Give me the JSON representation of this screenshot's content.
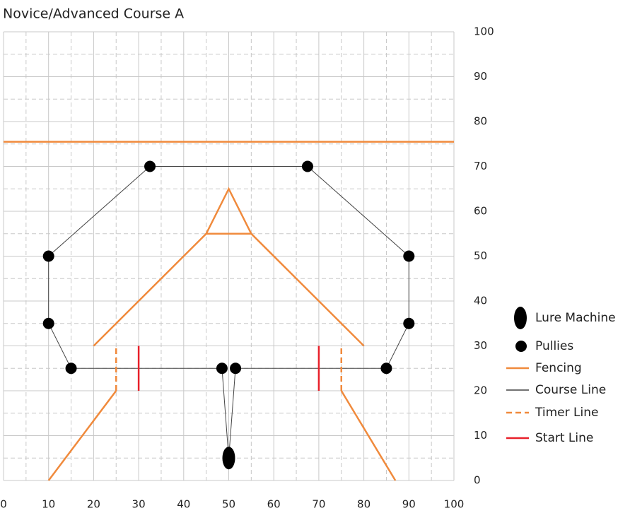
{
  "chart_data": {
    "type": "course",
    "title": "Novice/Advanced Course A",
    "xlim": [
      0,
      100
    ],
    "ylim": [
      0,
      100
    ],
    "xticks": [
      0,
      10,
      20,
      30,
      40,
      50,
      60,
      70,
      80,
      90,
      100
    ],
    "yticks": [
      0,
      10,
      20,
      30,
      40,
      50,
      60,
      70,
      80,
      90,
      100
    ],
    "xminor": [
      5,
      15,
      25,
      35,
      45,
      55,
      65,
      75,
      85,
      95
    ],
    "yminor": [
      5,
      15,
      25,
      35,
      45,
      55,
      65,
      75,
      85,
      95
    ],
    "grid": true,
    "series": [
      {
        "name": "Lure Machine",
        "kind": "ellipse",
        "color": "#000000",
        "x": [
          50
        ],
        "y": [
          5
        ]
      },
      {
        "name": "Pullies",
        "kind": "point",
        "color": "#000000",
        "x": [
          32.5,
          67.5,
          10,
          90,
          10,
          90,
          15,
          85,
          48.5,
          51.5
        ],
        "y": [
          70,
          70,
          50,
          50,
          35,
          35,
          25,
          25,
          25,
          25
        ]
      },
      {
        "name": "Fencing",
        "kind": "line",
        "color": "#f08a3c",
        "dash": false,
        "width": 2.5,
        "x": [
          0,
          100,
          null,
          20,
          45,
          50,
          55,
          80,
          null,
          45,
          55,
          null,
          10,
          25,
          null,
          87,
          75
        ],
        "y": [
          75.5,
          75.5,
          null,
          30,
          55,
          65,
          55,
          30,
          null,
          55,
          55,
          null,
          0,
          20,
          null,
          0,
          20
        ]
      },
      {
        "name": "Course Line",
        "kind": "line",
        "color": "#444444",
        "dash": false,
        "width": 1,
        "x": [
          50,
          48.5,
          15,
          10,
          10,
          32.5,
          67.5,
          90,
          90,
          85,
          51.5,
          50
        ],
        "y": [
          5,
          25,
          25,
          35,
          50,
          70,
          70,
          50,
          35,
          25,
          25,
          5
        ]
      },
      {
        "name": "Timer Line",
        "kind": "line",
        "color": "#f08a3c",
        "dash": true,
        "width": 2.5,
        "x": [
          25,
          25,
          null,
          75,
          75
        ],
        "y": [
          20,
          30,
          null,
          20,
          30
        ]
      },
      {
        "name": "Start Line",
        "kind": "line",
        "color": "#e8202a",
        "dash": false,
        "width": 2.5,
        "x": [
          30,
          30,
          null,
          70,
          70
        ],
        "y": [
          20,
          30,
          null,
          20,
          30
        ]
      }
    ]
  }
}
